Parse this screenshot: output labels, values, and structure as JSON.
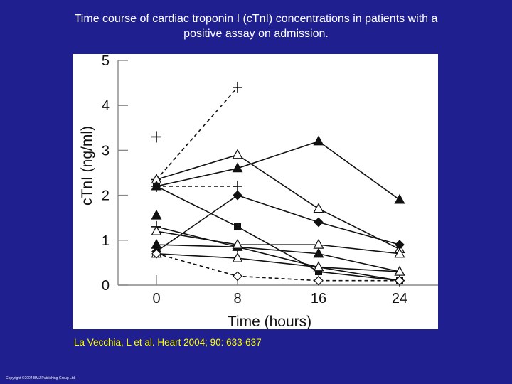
{
  "slide": {
    "title_line1": "Time course of cardiac troponin I (cTnI) concentrations in patients with a",
    "title_line2": "positive assay on admission.",
    "citation": "La Vecchia, L et al. Heart 2004; 90: 633-637",
    "copyright": "Copyright ©2004 BMJ Publishing Group Ltd."
  },
  "chart_data": {
    "type": "line",
    "xlabel": "Time (hours)",
    "ylabel": "cTnI (ng/ml)",
    "x": [
      0,
      8,
      16,
      24
    ],
    "x_ticks": [
      "0",
      "8",
      "16",
      "24"
    ],
    "y_ticks": [
      "0",
      "1",
      "2",
      "3",
      "4",
      "5"
    ],
    "xlim": [
      0,
      24
    ],
    "ylim": [
      0,
      5
    ],
    "grid": false,
    "series": [
      {
        "marker": "plus",
        "dashed": true,
        "values": [
          2.35,
          4.4,
          null,
          null
        ]
      },
      {
        "marker": "plus",
        "dashed": true,
        "values": [
          2.2,
          2.2,
          null,
          null
        ]
      },
      {
        "marker": "plus",
        "dashed": false,
        "values": [
          3.3,
          null,
          null,
          null
        ]
      },
      {
        "marker": "plus",
        "dashed": false,
        "values": [
          1.3,
          0.85,
          0.4,
          0.1
        ]
      },
      {
        "marker": "triangle-open",
        "dashed": false,
        "values": [
          2.35,
          2.9,
          1.7,
          0.8
        ]
      },
      {
        "marker": "triangle-filled",
        "dashed": false,
        "values": [
          2.2,
          2.6,
          3.2,
          1.9
        ]
      },
      {
        "marker": "square-filled",
        "dashed": false,
        "values": [
          2.2,
          1.3,
          0.3,
          0.1
        ]
      },
      {
        "marker": "triangle-filled",
        "dashed": false,
        "values": [
          1.55,
          null,
          null,
          null
        ]
      },
      {
        "marker": "triangle-filled",
        "dashed": false,
        "values": [
          0.9,
          0.85,
          0.7,
          0.3
        ]
      },
      {
        "marker": "triangle-open",
        "dashed": false,
        "values": [
          1.2,
          0.9,
          0.9,
          0.7
        ]
      },
      {
        "marker": "diamond-filled",
        "dashed": false,
        "values": [
          0.75,
          2.0,
          1.4,
          0.9
        ]
      },
      {
        "marker": "triangle-open",
        "dashed": false,
        "values": [
          0.7,
          0.6,
          0.4,
          0.3
        ]
      },
      {
        "marker": "diamond-open",
        "dashed": true,
        "values": [
          0.7,
          0.2,
          0.1,
          0.1
        ]
      }
    ]
  }
}
